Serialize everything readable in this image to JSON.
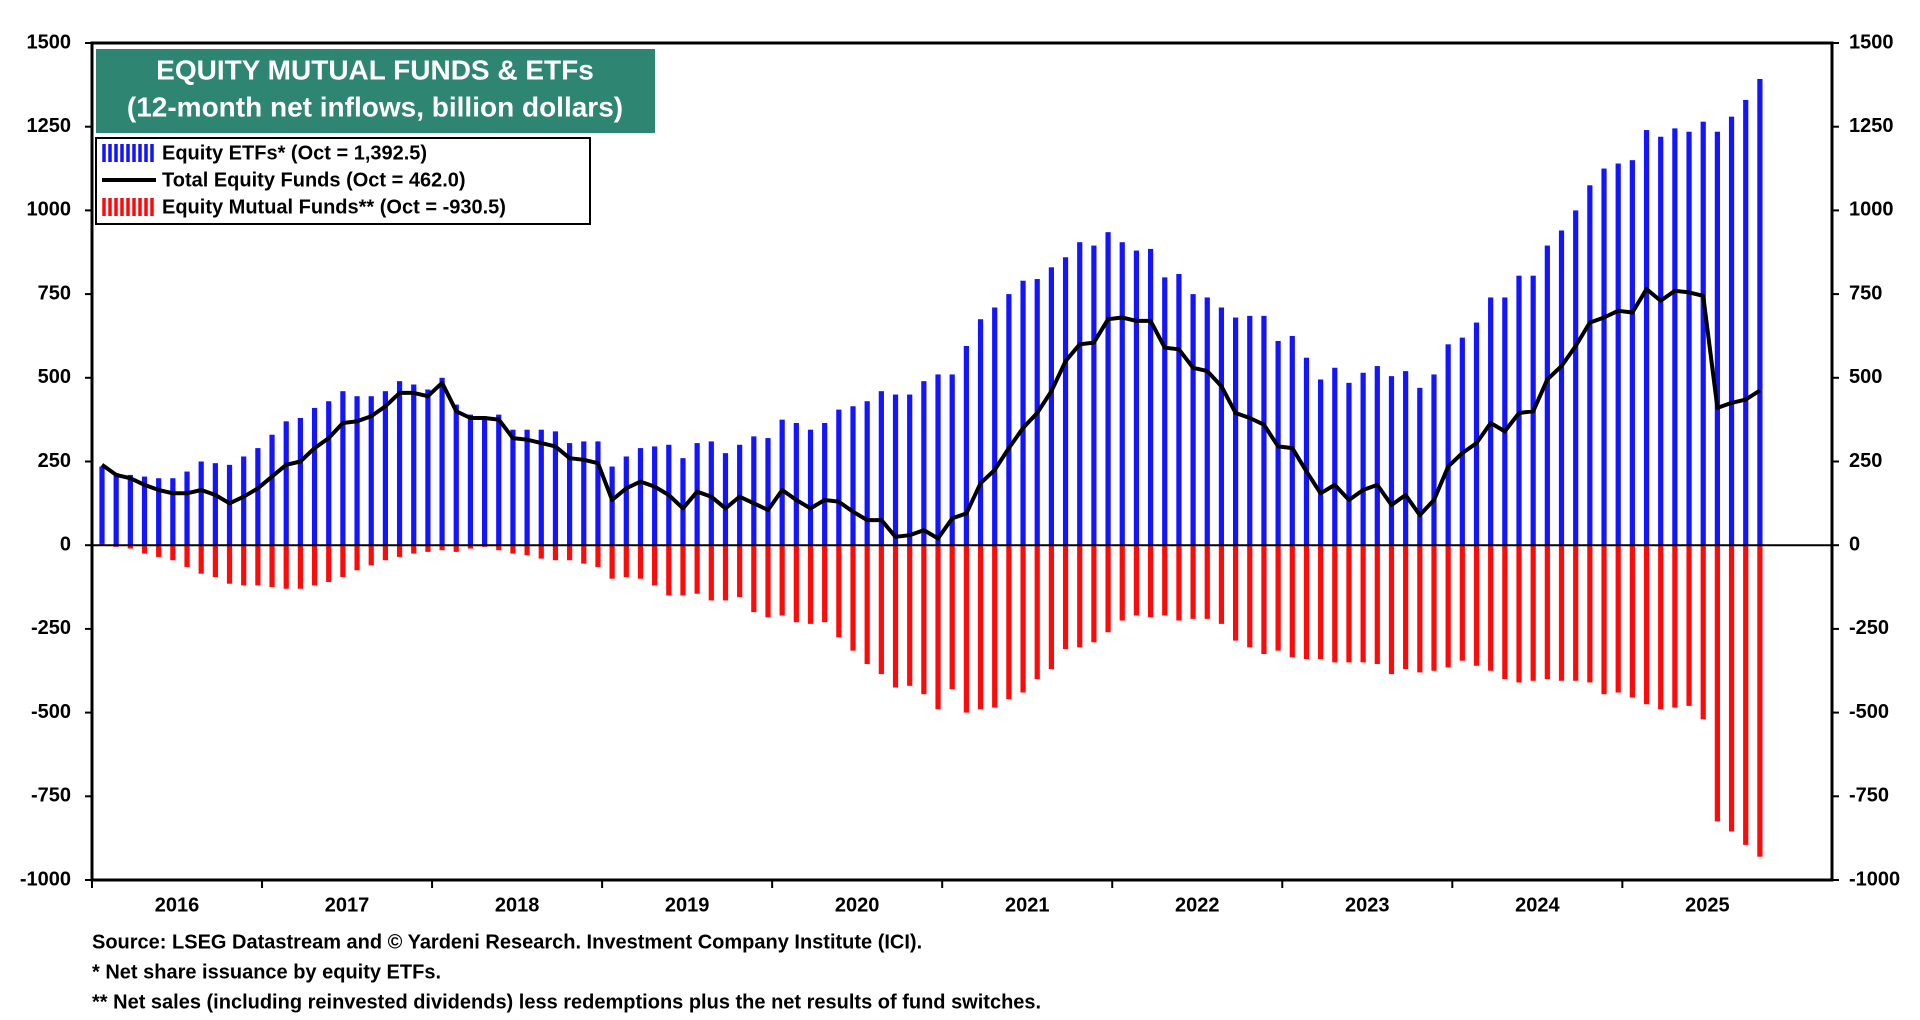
{
  "chart_data": {
    "type": "bar",
    "title": "EQUITY MUTUAL FUNDS & ETFs",
    "subtitle": "(12-month net inflows, billion dollars)",
    "notes": [
      "Source: LSEG Datastream and © Yardeni Research. Investment Company Institute (ICI).",
      "* Net share issuance by equity ETFs.",
      "** Net sales (including reinvested dividends) less redemptions plus the net results of fund switches."
    ],
    "categories": [
      "2016",
      null,
      null,
      null,
      null,
      null,
      null,
      null,
      null,
      null,
      null,
      null,
      "2017",
      null,
      null,
      null,
      null,
      null,
      null,
      null,
      null,
      null,
      null,
      null,
      "2018",
      null,
      null,
      null,
      null,
      null,
      null,
      null,
      null,
      null,
      null,
      null,
      "2019",
      null,
      null,
      null,
      null,
      null,
      null,
      null,
      null,
      null,
      null,
      null,
      "2020",
      null,
      null,
      null,
      null,
      null,
      null,
      null,
      null,
      null,
      null,
      null,
      "2021",
      null,
      null,
      null,
      null,
      null,
      null,
      null,
      null,
      null,
      null,
      null,
      "2022",
      null,
      null,
      null,
      null,
      null,
      null,
      null,
      null,
      null,
      null,
      null,
      "2023",
      null,
      null,
      null,
      null,
      null,
      null,
      null,
      null,
      null,
      null,
      null,
      "2024",
      null,
      null,
      null,
      null,
      null,
      null,
      null,
      null,
      null,
      null,
      null,
      "2025",
      null,
      null,
      null,
      null,
      null,
      null,
      null,
      null,
      null
    ],
    "series": [
      {
        "name": "Equity ETFs* (Oct = 1,392.5)",
        "type": "bar",
        "color": "#1414ff",
        "values": [
          235,
          215,
          210,
          205,
          200,
          200,
          220,
          250,
          245,
          240,
          265,
          290,
          330,
          370,
          380,
          410,
          430,
          460,
          445,
          445,
          460,
          490,
          480,
          465,
          500,
          420,
          390,
          385,
          390,
          345,
          345,
          345,
          340,
          305,
          310,
          310,
          235,
          265,
          290,
          295,
          300,
          260,
          305,
          310,
          275,
          300,
          325,
          320,
          375,
          365,
          345,
          365,
          405,
          415,
          430,
          460,
          450,
          450,
          490,
          510,
          510,
          595,
          675,
          710,
          750,
          790,
          795,
          830,
          860,
          905,
          895,
          935,
          905,
          880,
          885,
          800,
          810,
          750,
          740,
          710,
          680,
          685,
          685,
          610,
          625,
          560,
          495,
          530,
          485,
          515,
          535,
          505,
          520,
          470,
          510,
          600,
          620,
          665,
          740,
          740,
          805,
          805,
          895,
          940,
          1000,
          1075,
          1125,
          1140,
          1150,
          1240,
          1220,
          1245,
          1235,
          1265,
          1235,
          1280,
          1330,
          1392.5
        ]
      },
      {
        "name": "Total Equity Funds (Oct = 462.0)",
        "type": "line",
        "color": "#000000",
        "values": [
          240,
          210,
          200,
          180,
          165,
          155,
          155,
          165,
          150,
          125,
          145,
          170,
          205,
          240,
          250,
          290,
          320,
          365,
          370,
          385,
          415,
          455,
          455,
          445,
          485,
          400,
          380,
          380,
          375,
          320,
          315,
          305,
          295,
          260,
          255,
          245,
          135,
          170,
          190,
          175,
          150,
          110,
          160,
          145,
          110,
          145,
          125,
          105,
          165,
          135,
          110,
          135,
          130,
          100,
          75,
          75,
          25,
          30,
          45,
          20,
          80,
          95,
          185,
          225,
          290,
          350,
          395,
          460,
          550,
          600,
          605,
          675,
          680,
          670,
          670,
          590,
          585,
          530,
          520,
          475,
          395,
          380,
          360,
          295,
          290,
          220,
          155,
          180,
          135,
          165,
          180,
          120,
          150,
          90,
          135,
          235,
          275,
          305,
          365,
          340,
          395,
          400,
          495,
          535,
          595,
          665,
          680,
          700,
          695,
          765,
          730,
          760,
          755,
          745,
          410,
          425,
          435,
          462
        ]
      },
      {
        "name": "Equity Mutual Funds** (Oct = -930.5)",
        "type": "bar",
        "color": "#ff0a0a",
        "values": [
          5,
          -5,
          -10,
          -25,
          -35,
          -45,
          -65,
          -85,
          -95,
          -115,
          -120,
          -120,
          -125,
          -130,
          -130,
          -120,
          -110,
          -95,
          -75,
          -60,
          -45,
          -35,
          -25,
          -20,
          -15,
          -20,
          -10,
          -5,
          -15,
          -25,
          -30,
          -40,
          -45,
          -45,
          -55,
          -65,
          -100,
          -95,
          -100,
          -120,
          -150,
          -150,
          -145,
          -165,
          -165,
          -155,
          -200,
          -215,
          -210,
          -230,
          -235,
          -230,
          -275,
          -315,
          -355,
          -385,
          -425,
          -420,
          -445,
          -490,
          -430,
          -500,
          -490,
          -485,
          -460,
          -440,
          -400,
          -370,
          -310,
          -305,
          -290,
          -260,
          -225,
          -210,
          -215,
          -210,
          -225,
          -220,
          -220,
          -235,
          -285,
          -305,
          -325,
          -315,
          -335,
          -340,
          -340,
          -350,
          -350,
          -350,
          -355,
          -385,
          -370,
          -380,
          -375,
          -365,
          -345,
          -360,
          -375,
          -400,
          -410,
          -405,
          -400,
          -405,
          -405,
          -410,
          -445,
          -440,
          -455,
          -475,
          -490,
          -485,
          -480,
          -520,
          -825,
          -855,
          -895,
          -930.5
        ]
      }
    ],
    "ylim": [
      -1000,
      1500
    ],
    "yticks": [
      -1000,
      -750,
      -500,
      -250,
      0,
      250,
      500,
      750,
      1000,
      1250,
      1500
    ],
    "legend": "upper left"
  }
}
